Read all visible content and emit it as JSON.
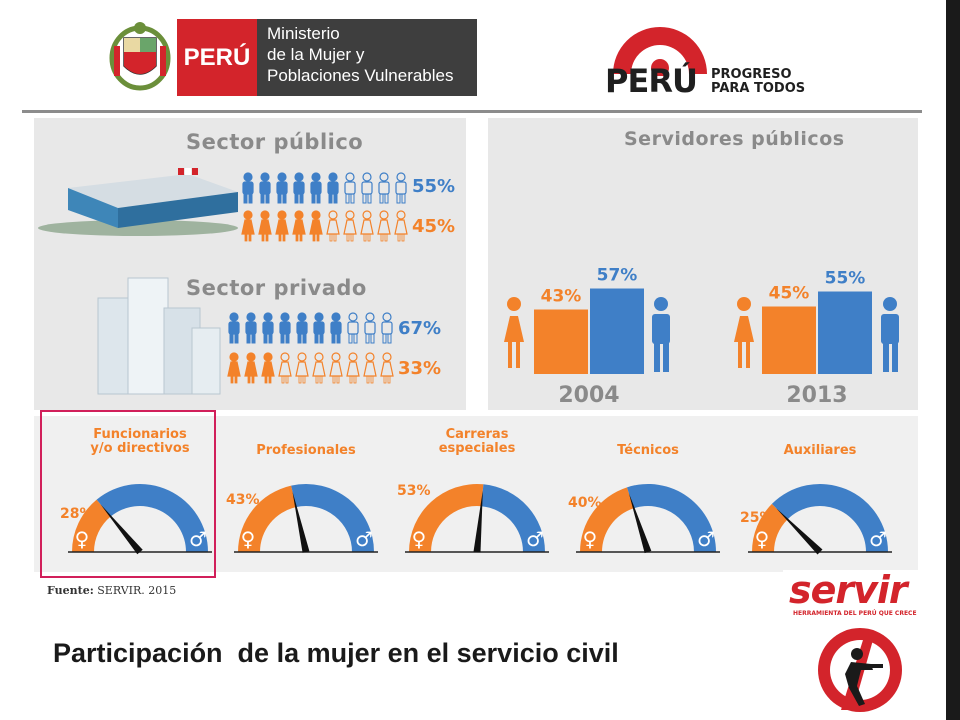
{
  "header": {
    "ministry_badge": "PERÚ",
    "ministry_name_lines": [
      "Ministerio",
      "de la Mujer y",
      "Poblaciones Vulnerables"
    ],
    "campaign_brand": "PERÚ",
    "campaign_tagline_lines": [
      "PROGRESO",
      "PARA TODOS"
    ]
  },
  "sectors": {
    "public": {
      "title": "Sector público",
      "men_pct": "55%",
      "women_pct": "45%",
      "men_share": 0.55,
      "women_share": 0.45
    },
    "private": {
      "title": "Sector privado",
      "men_pct": "67%",
      "women_pct": "33%",
      "men_share": 0.67,
      "women_share": 0.33
    }
  },
  "servants": {
    "title": "Servidores públicos",
    "chart_data": {
      "type": "bar",
      "title": "Servidores públicos",
      "categories": [
        "2004",
        "2013"
      ],
      "series": [
        {
          "values": [
            43,
            45
          ],
          "labels": [
            "43%",
            "45%"
          ],
          "color": "#f3822a"
        },
        {
          "values": [
            57,
            55
          ],
          "labels": [
            "57%",
            "55%"
          ],
          "color": "#3f7fc7"
        }
      ],
      "ylim": [
        0,
        100
      ]
    }
  },
  "gauges": [
    {
      "title_lines": [
        "Funcionarios",
        "y/o directivos"
      ],
      "pct": "28%",
      "value": 28
    },
    {
      "title_lines": [
        "Profesionales"
      ],
      "pct": "43%",
      "value": 43
    },
    {
      "title_lines": [
        "Carreras",
        "especiales"
      ],
      "pct": "53%",
      "value": 53
    },
    {
      "title_lines": [
        "Técnicos"
      ],
      "pct": "40%",
      "value": 40
    },
    {
      "title_lines": [
        "Auxiliares"
      ],
      "pct": "25%",
      "value": 25
    }
  ],
  "source": {
    "label": "Fuente:",
    "text": "SERVIR. 2015"
  },
  "slide_title": "Participación  de la mujer en el servicio civil",
  "servir_logo": {
    "brand": "servir",
    "tagline": "HERRAMIENTA DEL PERÚ QUE CRECE"
  },
  "colors": {
    "orange": "#f3822a",
    "blue": "#3f7fc7",
    "red": "#d3242b",
    "panel": "#e8e8e8",
    "heading_grey": "#8a8a8a"
  }
}
